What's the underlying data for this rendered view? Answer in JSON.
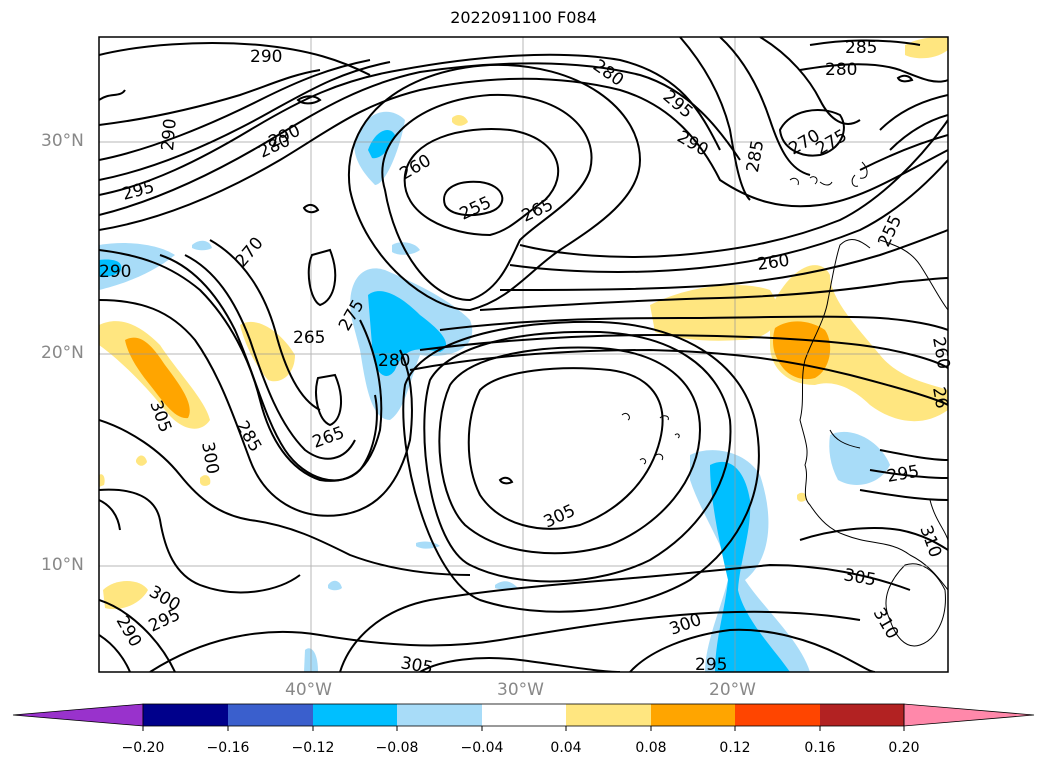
{
  "title": "2022091100 F084",
  "map": {
    "lat_labels": [
      "30°N",
      "20°N",
      "10°N"
    ],
    "lon_labels": [
      "40°W",
      "30°W",
      "20°W"
    ],
    "contour_labels": [
      {
        "text": "290"
      },
      {
        "text": "290"
      },
      {
        "text": "280"
      },
      {
        "text": "290"
      },
      {
        "text": "295"
      },
      {
        "text": "280"
      },
      {
        "text": "285"
      },
      {
        "text": "280"
      },
      {
        "text": "295"
      },
      {
        "text": "290"
      },
      {
        "text": "270"
      },
      {
        "text": "275"
      },
      {
        "text": "285"
      },
      {
        "text": "260"
      },
      {
        "text": "255"
      },
      {
        "text": "265"
      },
      {
        "text": "270"
      },
      {
        "text": "290"
      },
      {
        "text": "275"
      },
      {
        "text": "265"
      },
      {
        "text": "280"
      },
      {
        "text": "260"
      },
      {
        "text": "255"
      },
      {
        "text": "305"
      },
      {
        "text": "285"
      },
      {
        "text": "265"
      },
      {
        "text": "300"
      },
      {
        "text": "305"
      },
      {
        "text": "295"
      },
      {
        "text": "260"
      },
      {
        "text": "26"
      },
      {
        "text": "310"
      },
      {
        "text": "300"
      },
      {
        "text": "295"
      },
      {
        "text": "290"
      },
      {
        "text": "305"
      },
      {
        "text": "305"
      },
      {
        "text": "300"
      },
      {
        "text": "310"
      },
      {
        "text": "295"
      }
    ]
  },
  "colorbar": {
    "ticks": [
      "−0.20",
      "−0.16",
      "−0.12",
      "−0.08",
      "−0.04",
      "0.04",
      "0.08",
      "0.12",
      "0.16",
      "0.20"
    ],
    "colors": [
      "#9932cc",
      "#00008b",
      "#3a5fcd",
      "#00bfff",
      "#a8dcf8",
      "#ffffff",
      "#ffe680",
      "#ffa500",
      "#ff4500",
      "#b22222",
      "#ff88aa"
    ]
  }
}
